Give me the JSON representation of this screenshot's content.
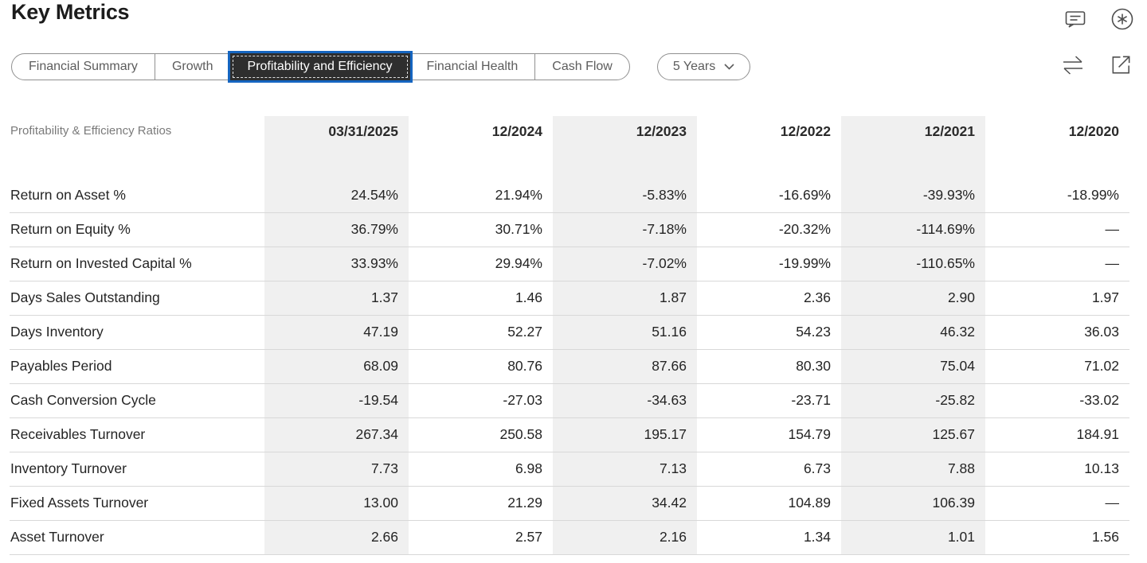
{
  "header": {
    "title": "Key Metrics",
    "icons_top_right": [
      "comment-icon",
      "circled-asterisk-icon"
    ],
    "icons_toolbar_right": [
      "compare-arrows-icon",
      "open-in-new-icon"
    ]
  },
  "tabs": {
    "items": [
      {
        "label": "Financial Summary",
        "selected": false
      },
      {
        "label": "Growth",
        "selected": false
      },
      {
        "label": "Profitability and Efficiency",
        "selected": true
      },
      {
        "label": "Financial Health",
        "selected": false
      },
      {
        "label": "Cash Flow",
        "selected": false
      }
    ]
  },
  "period_dropdown": {
    "value": "5 Years",
    "icon": "chevron-down-icon"
  },
  "colors": {
    "accent_blue": "#1565c0",
    "selected_tab_bg": "#2e2e2e",
    "column_band_gray": "#f0f0f0",
    "row_divider": "#d8d8d8",
    "muted_text": "#7a7a7a"
  },
  "table": {
    "corner_label": "Profitability & Efficiency Ratios",
    "columns": [
      "03/31/2025",
      "12/2024",
      "12/2023",
      "12/2022",
      "12/2021",
      "12/2020"
    ],
    "shaded_columns": [
      0,
      2,
      4
    ],
    "rows": [
      {
        "label": "Return on Asset %",
        "values": [
          "24.54%",
          "21.94%",
          "-5.83%",
          "-16.69%",
          "-39.93%",
          "-18.99%"
        ]
      },
      {
        "label": "Return on Equity %",
        "values": [
          "36.79%",
          "30.71%",
          "-7.18%",
          "-20.32%",
          "-114.69%",
          "—"
        ]
      },
      {
        "label": "Return on Invested Capital %",
        "values": [
          "33.93%",
          "29.94%",
          "-7.02%",
          "-19.99%",
          "-110.65%",
          "—"
        ]
      },
      {
        "label": "Days Sales Outstanding",
        "values": [
          "1.37",
          "1.46",
          "1.87",
          "2.36",
          "2.90",
          "1.97"
        ]
      },
      {
        "label": "Days Inventory",
        "values": [
          "47.19",
          "52.27",
          "51.16",
          "54.23",
          "46.32",
          "36.03"
        ]
      },
      {
        "label": "Payables Period",
        "values": [
          "68.09",
          "80.76",
          "87.66",
          "80.30",
          "75.04",
          "71.02"
        ]
      },
      {
        "label": "Cash Conversion Cycle",
        "values": [
          "-19.54",
          "-27.03",
          "-34.63",
          "-23.71",
          "-25.82",
          "-33.02"
        ]
      },
      {
        "label": "Receivables Turnover",
        "values": [
          "267.34",
          "250.58",
          "195.17",
          "154.79",
          "125.67",
          "184.91"
        ]
      },
      {
        "label": "Inventory Turnover",
        "values": [
          "7.73",
          "6.98",
          "7.13",
          "6.73",
          "7.88",
          "10.13"
        ]
      },
      {
        "label": "Fixed Assets Turnover",
        "values": [
          "13.00",
          "21.29",
          "34.42",
          "104.89",
          "106.39",
          "—"
        ]
      },
      {
        "label": "Asset Turnover",
        "values": [
          "2.66",
          "2.57",
          "2.16",
          "1.34",
          "1.01",
          "1.56"
        ]
      }
    ]
  }
}
